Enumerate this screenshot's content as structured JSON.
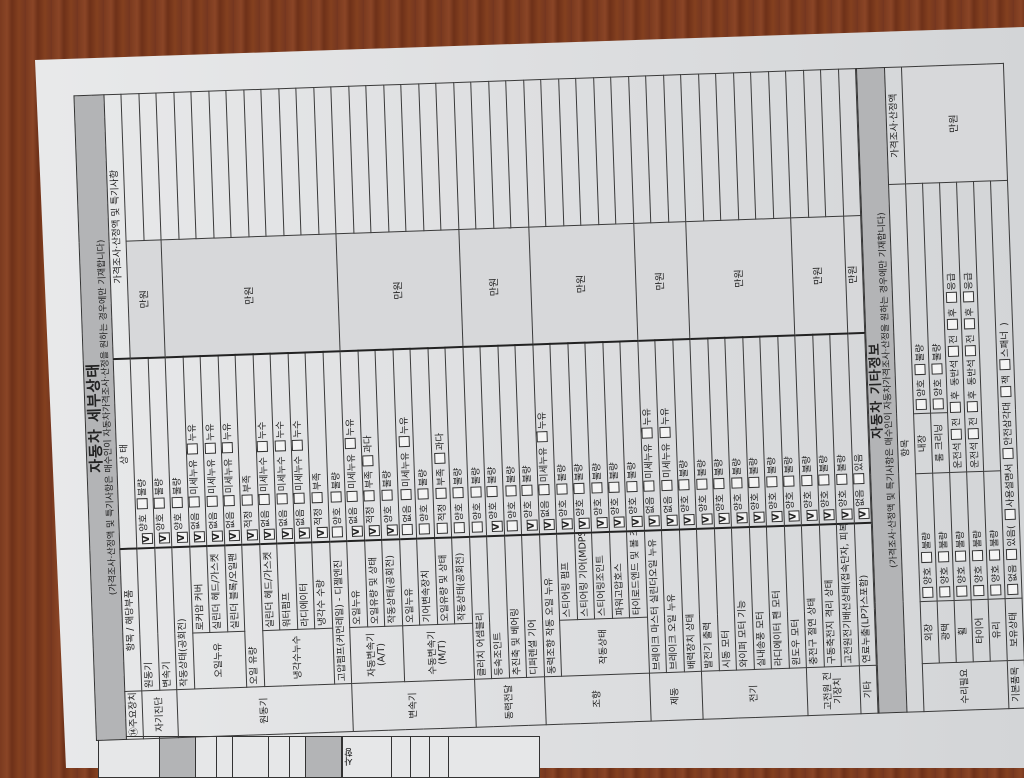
{
  "detail": {
    "title": "자동차 세부상태",
    "subtitle": "(가격조사·산정액 및 특기사항은 매수인이 자동차가격조사·산정을 원하는 경우에만 기재합니다)",
    "headers": {
      "main": "⑭주요장치",
      "item": "항목 / 해당부품",
      "state": "상 태",
      "price_note": "가격조사·산정액 및 특기사항"
    },
    "categories": [
      {
        "category": "자기진단",
        "price": "만원",
        "items": [
          {
            "label": "원동기",
            "options": [
              "양호",
              "불량"
            ],
            "checked": 0
          },
          {
            "label": "변속기",
            "options": [
              "양호",
              "불량"
            ],
            "checked": 0
          }
        ]
      },
      {
        "category": "원동기",
        "price": "만원",
        "items": [
          {
            "label": "작동상태(공회전)",
            "options": [
              "양호",
              "불량"
            ],
            "checked": 0
          },
          {
            "label": "오일누유",
            "sub": [
              {
                "label": "로커암 커버",
                "options": [
                  "없음",
                  "미세누유",
                  "누유"
                ],
                "checked": 0
              },
              {
                "label": "실린더 헤드/가스켓",
                "options": [
                  "없음",
                  "미세누유",
                  "누유"
                ],
                "checked": 0
              },
              {
                "label": "실린더 블록/오일팬",
                "options": [
                  "없음",
                  "미세누유",
                  "누유"
                ],
                "checked": 0
              }
            ]
          },
          {
            "label": "오일 유량",
            "options": [
              "적정",
              "부족"
            ],
            "checked": 0
          },
          {
            "label": "냉각수누수",
            "sub": [
              {
                "label": "실린더 헤드/가스켓",
                "options": [
                  "없음",
                  "미세누수",
                  "누수"
                ],
                "checked": 0
              },
              {
                "label": "워터펌프",
                "options": [
                  "없음",
                  "미세누수",
                  "누수"
                ],
                "checked": 0
              },
              {
                "label": "라디에이터",
                "options": [
                  "없음",
                  "미세누수",
                  "누수"
                ],
                "checked": 0
              },
              {
                "label": "냉각수 수량",
                "options": [
                  "적정",
                  "부족"
                ],
                "checked": 0
              }
            ]
          },
          {
            "label": "고압펌프(커먼레일) - 디젤엔진",
            "options": [
              "양호",
              "불량"
            ],
            "checked": null
          }
        ]
      },
      {
        "category": "변속기",
        "price": "만원",
        "items": [
          {
            "label": "자동변속기 (A/T)",
            "sub": [
              {
                "label": "오일누유",
                "options": [
                  "없음",
                  "미세누유",
                  "누유"
                ],
                "checked": 0
              },
              {
                "label": "오일유량 및 상태",
                "options": [
                  "적정",
                  "부족",
                  "과다"
                ],
                "checked": 0
              },
              {
                "label": "작동상태(공회전)",
                "options": [
                  "양호",
                  "불량"
                ],
                "checked": 0
              }
            ]
          },
          {
            "label": "수동변속기 (M/T)",
            "sub": [
              {
                "label": "오일누유",
                "options": [
                  "없음",
                  "미세누유",
                  "누유"
                ],
                "checked": null
              },
              {
                "label": "기어변속장치",
                "options": [
                  "양호",
                  "불량"
                ],
                "checked": null
              },
              {
                "label": "오일유량 및 상태",
                "options": [
                  "적정",
                  "부족",
                  "과다"
                ],
                "checked": null
              },
              {
                "label": "작동상태(공회전)",
                "options": [
                  "양호",
                  "불량"
                ],
                "checked": null
              }
            ]
          }
        ]
      },
      {
        "category": "동력전달",
        "price": "만원",
        "items": [
          {
            "label": "클러치 어셈블리",
            "options": [
              "양호",
              "불량"
            ],
            "checked": null
          },
          {
            "label": "등속조인트",
            "options": [
              "양호",
              "불량"
            ],
            "checked": 0
          },
          {
            "label": "추진축 및 베어링",
            "options": [
              "양호",
              "불량"
            ],
            "checked": null
          },
          {
            "label": "디퍼렌셜 기어",
            "options": [
              "양호",
              "불량"
            ],
            "checked": 0
          }
        ]
      },
      {
        "category": "조향",
        "price": "만원",
        "items": [
          {
            "label": "동력조향 작동 오일 누유",
            "options": [
              "없음",
              "미세누유",
              "누유"
            ],
            "checked": 0
          },
          {
            "label": "작동상태",
            "sub": [
              {
                "label": "스티어링 펌프",
                "options": [
                  "양호",
                  "불량"
                ],
                "checked": 0
              },
              {
                "label": "스티어링 기어(MDPS포함)",
                "options": [
                  "양호",
                  "불량"
                ],
                "checked": 0
              },
              {
                "label": "스티어링조인트",
                "options": [
                  "양호",
                  "불량"
                ],
                "checked": 0
              },
              {
                "label": "파워고압호스",
                "options": [
                  "양호",
                  "불량"
                ],
                "checked": 0
              },
              {
                "label": "타이로드엔드 및 볼 조인트",
                "options": [
                  "양호",
                  "불량"
                ],
                "checked": 0
              }
            ]
          }
        ]
      },
      {
        "category": "제동",
        "price": "만원",
        "items": [
          {
            "label": "브레이크 마스터 실린더오일 누유",
            "options": [
              "없음",
              "미세누유",
              "누유"
            ],
            "checked": 0
          },
          {
            "label": "브레이크 오일 누유",
            "options": [
              "없음",
              "미세누유",
              "누유"
            ],
            "checked": 0
          },
          {
            "label": "배력장치 상태",
            "options": [
              "양호",
              "불량"
            ],
            "checked": 0
          }
        ]
      },
      {
        "category": "전기",
        "price": "만원",
        "items": [
          {
            "label": "발전기 출력",
            "options": [
              "양호",
              "불량"
            ],
            "checked": 0
          },
          {
            "label": "시동 모터",
            "options": [
              "양호",
              "불량"
            ],
            "checked": 0
          },
          {
            "label": "와이퍼 모터 기능",
            "options": [
              "양호",
              "불량"
            ],
            "checked": 0
          },
          {
            "label": "실내송풍 모터",
            "options": [
              "양호",
              "불량"
            ],
            "checked": 0
          },
          {
            "label": "라디에이터 팬 모터",
            "options": [
              "양호",
              "불량"
            ],
            "checked": 0
          },
          {
            "label": "윈도우 모터",
            "options": [
              "양호",
              "불량"
            ],
            "checked": 0
          }
        ]
      },
      {
        "category": "고전원 전기장치",
        "price": "만원",
        "items": [
          {
            "label": "충전구 절연 상태",
            "options": [
              "양호",
              "불량"
            ],
            "checked": 0
          },
          {
            "label": "구동축전지 격리 상태",
            "options": [
              "양호",
              "불량"
            ],
            "checked": 0
          },
          {
            "label": "고전원전기배선상태(접속단자, 피복, 보호기구)",
            "options": [
              "양호",
              "불량"
            ],
            "checked": 0
          }
        ]
      },
      {
        "category": "기타",
        "price": "만원",
        "items": [
          {
            "label": "연료누출(LP가스포함)",
            "options": [
              "없음",
              "있음"
            ],
            "checked": 0
          }
        ]
      }
    ]
  },
  "other": {
    "title": "자동차 기타정보",
    "subtitle": "(가격조사·산정액 및 특기사항은 매수인이 자동차가격조사·산정을 원하는 경우에만 기재합니다)",
    "header_item": "항목",
    "header_price": "가격조사·산정액",
    "price": "만원",
    "repair": {
      "category": "수리필요",
      "rows": [
        {
          "label": "외장",
          "options": [
            "양호",
            "불량"
          ],
          "label2": "내장",
          "options2": [
            "양호",
            "불량"
          ]
        },
        {
          "label": "광택",
          "options": [
            "양호",
            "불량"
          ],
          "label2": "룸 크리닝",
          "options2": [
            "양호",
            "불량"
          ]
        },
        {
          "label": "휠",
          "options": [
            "양호",
            "불량"
          ],
          "positions": [
            "운전석",
            "전",
            "후",
            "동반석",
            "전",
            "후",
            "응급"
          ]
        },
        {
          "label": "타이어",
          "options": [
            "양호",
            "불량"
          ],
          "positions": [
            "운전석",
            "전",
            "후",
            "동반석",
            "전",
            "후",
            "응급"
          ]
        },
        {
          "label": "유리",
          "options": [
            "양호",
            "불량"
          ]
        }
      ]
    },
    "basic": {
      "category": "기본품목",
      "label": "보유상태",
      "options": [
        "없음",
        "있음("
      ],
      "items": [
        "사용설명서",
        "안전삼각대",
        "잭",
        "스패너"
      ],
      "close": ")"
    }
  },
  "back_page": {
    "label": "사항"
  }
}
